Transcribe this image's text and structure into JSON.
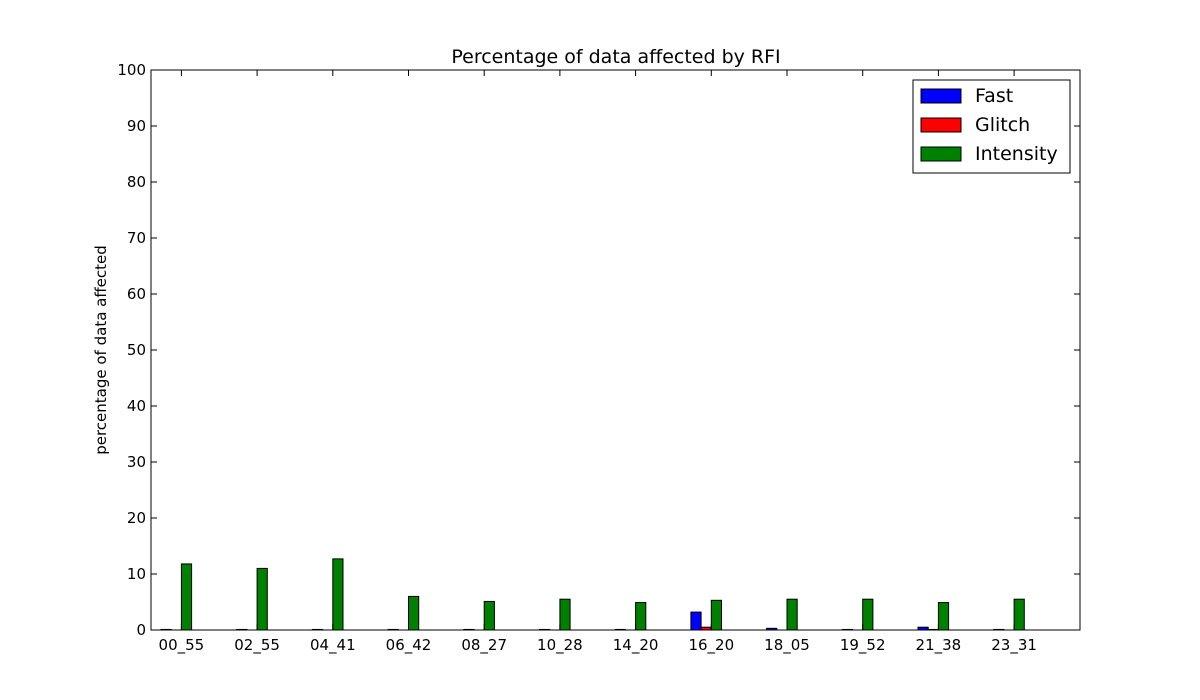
{
  "chart_data": {
    "type": "bar",
    "title": "Percentage of data affected by RFI",
    "xlabel": "",
    "ylabel": "percentage of data affected",
    "ylim": [
      0,
      100
    ],
    "yticks": [
      0,
      10,
      20,
      30,
      40,
      50,
      60,
      70,
      80,
      90,
      100
    ],
    "categories": [
      "00_55",
      "02_55",
      "04_41",
      "06_42",
      "08_27",
      "10_28",
      "14_20",
      "16_20",
      "18_05",
      "19_52",
      "21_38",
      "23_31"
    ],
    "series": [
      {
        "name": "Fast",
        "color": "#0000ff",
        "values": [
          0.1,
          0.1,
          0.1,
          0.1,
          0.1,
          0.1,
          0.1,
          3.2,
          0.3,
          0.1,
          0.5,
          0.1
        ]
      },
      {
        "name": "Glitch",
        "color": "#ff0000",
        "values": [
          0.0,
          0.0,
          0.0,
          0.0,
          0.0,
          0.0,
          0.0,
          0.5,
          0.0,
          0.0,
          0.1,
          0.0
        ]
      },
      {
        "name": "Intensity",
        "color": "#008000",
        "values": [
          11.8,
          11.0,
          12.7,
          6.0,
          5.1,
          5.5,
          4.9,
          5.3,
          5.5,
          5.5,
          4.9,
          5.5
        ]
      }
    ],
    "legend_position": "top-right",
    "grid": false
  }
}
